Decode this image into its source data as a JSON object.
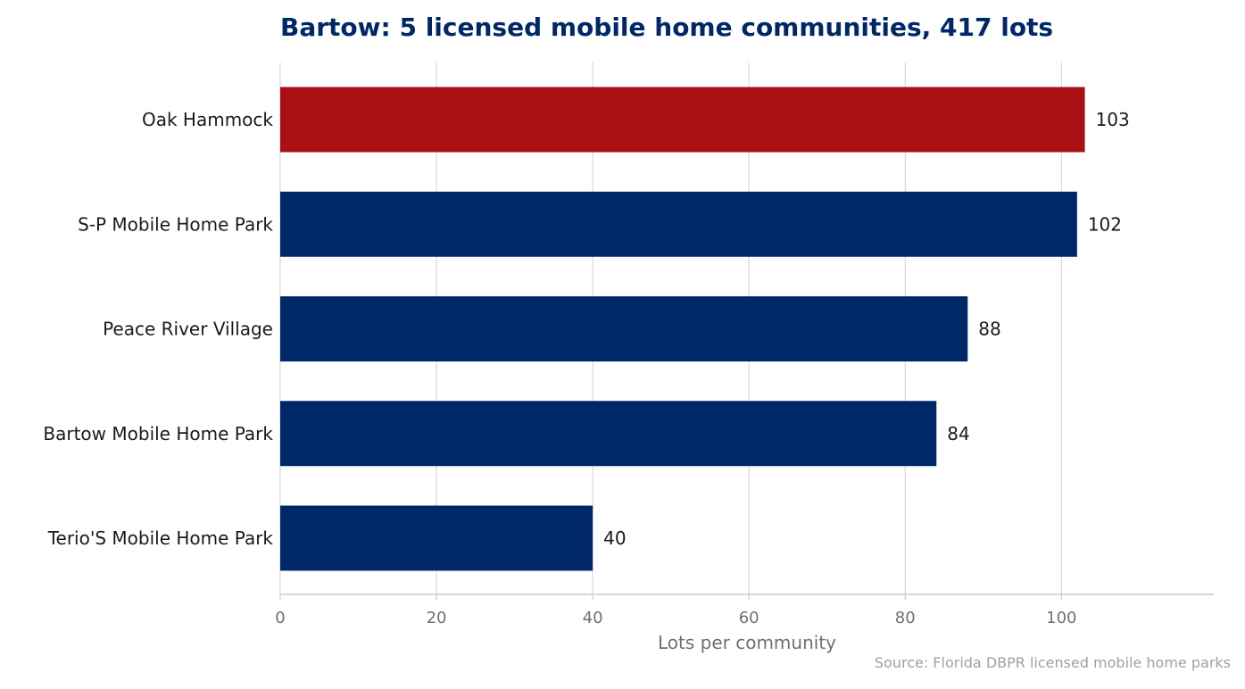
{
  "chart_data": {
    "type": "bar",
    "orientation": "horizontal",
    "title": "Bartow: 5 licensed mobile home communities, 417 lots",
    "categories": [
      "Oak Hammock",
      "S-P Mobile Home Park",
      "Peace River Village",
      "Bartow Mobile Home Park",
      "Terio'S Mobile Home Park"
    ],
    "values": [
      103,
      102,
      88,
      84,
      40
    ],
    "value_labels": [
      "103",
      "102",
      "88",
      "84",
      "40"
    ],
    "highlight_index": 0,
    "xlabel": "Lots per community",
    "ylabel": "",
    "xlim": [
      0,
      119.5
    ],
    "xticks": [
      0,
      20,
      40,
      60,
      80,
      100
    ],
    "xtick_labels": [
      "0",
      "20",
      "40",
      "60",
      "80",
      "100"
    ],
    "grid": "vertical",
    "source": "Source: Florida DBPR licensed mobile home parks"
  },
  "colors": {
    "bar": "#002868",
    "highlight": "#a81014",
    "title": "#002868",
    "grid": "#d9d9d9",
    "axis": "#cccccc"
  }
}
